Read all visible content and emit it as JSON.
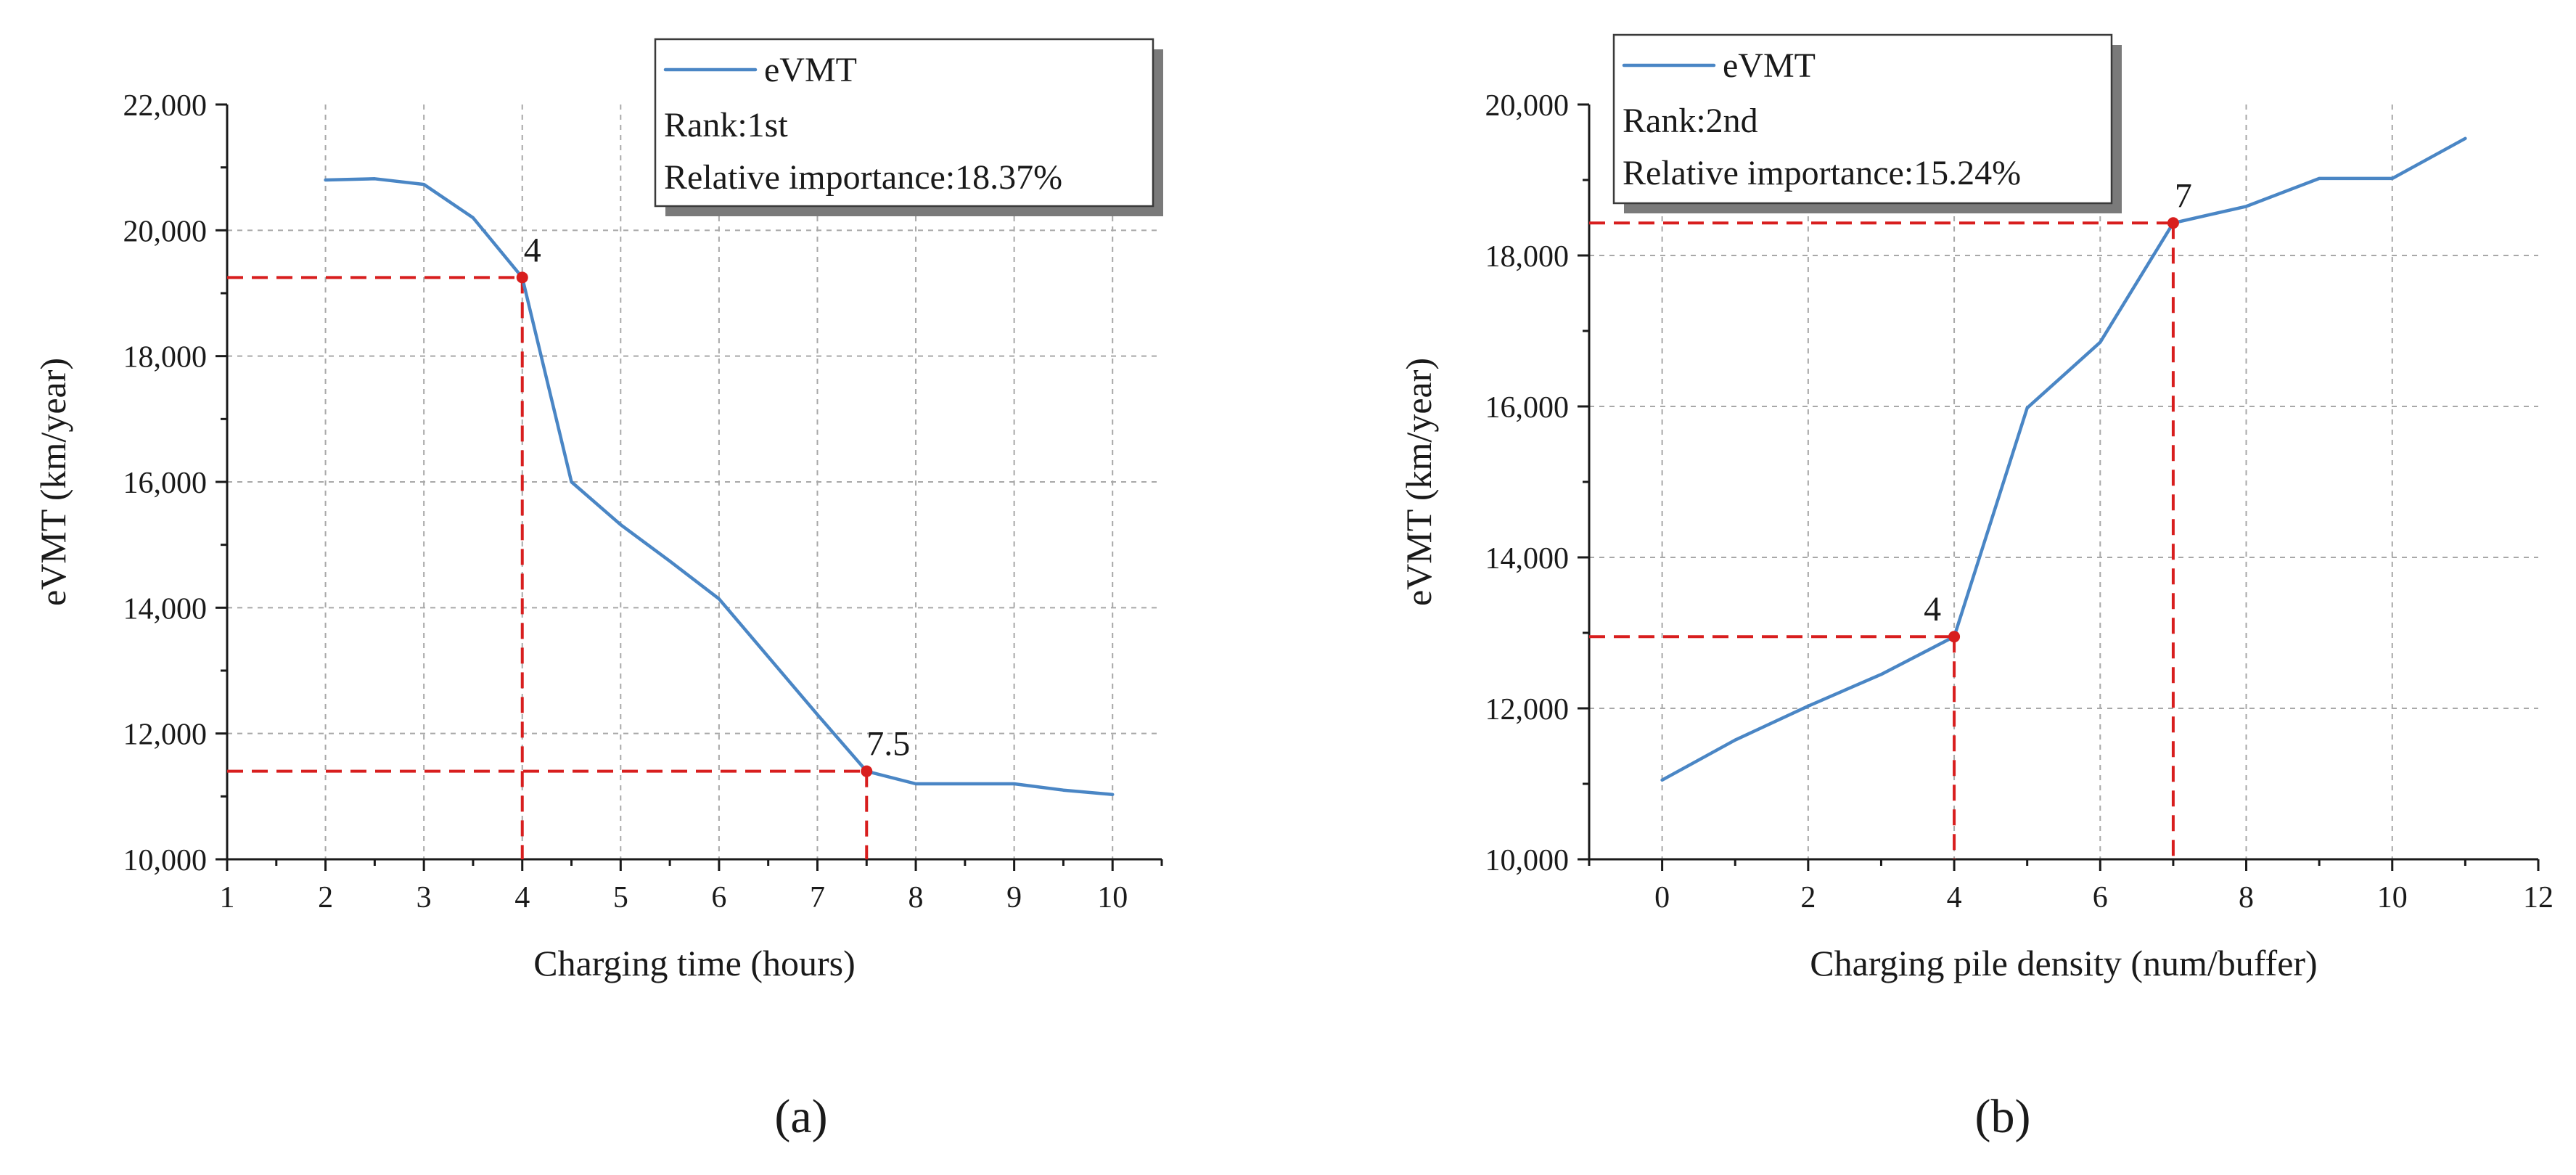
{
  "chart_data": [
    {
      "type": "line",
      "panel_label": "(a)",
      "xlabel": "Charging time (hours)",
      "ylabel": "eVMT (km/year)",
      "xlim": [
        1,
        10.5
      ],
      "ylim": [
        10000,
        22000
      ],
      "xticks": [
        1,
        2,
        3,
        4,
        5,
        6,
        7,
        8,
        9,
        10
      ],
      "yticks": [
        10000,
        12000,
        14000,
        16000,
        18000,
        20000,
        22000
      ],
      "xtick_labels": [
        "1",
        "2",
        "3",
        "4",
        "5",
        "6",
        "7",
        "8",
        "9",
        "10"
      ],
      "ytick_labels": [
        "10,000",
        "12,000",
        "14,000",
        "16,000",
        "18,000",
        "20,000",
        "22,000"
      ],
      "grid": true,
      "legend": {
        "position": "top-right",
        "series_label": "eVMT",
        "rank": "Rank:1st",
        "importance": "Relative importance:18.37%"
      },
      "series": [
        {
          "name": "eVMT",
          "color": "#4a86c5",
          "x": [
            2,
            2.5,
            3,
            3.5,
            4,
            4.5,
            5,
            5.5,
            6,
            6.5,
            7,
            7.5,
            8,
            8.5,
            9,
            9.5,
            10
          ],
          "y": [
            20800,
            20820,
            20730,
            20200,
            19250,
            16000,
            15320,
            14740,
            14140,
            13220,
            12300,
            11400,
            11200,
            11200,
            11200,
            11100,
            11030
          ]
        }
      ],
      "highlights": [
        {
          "x": 4,
          "y": 19250,
          "label": "4"
        },
        {
          "x": 7.5,
          "y": 11400,
          "label": "7.5"
        }
      ]
    },
    {
      "type": "line",
      "panel_label": "(b)",
      "xlabel": "Charging pile density (num/buffer)",
      "ylabel": "eVMT (km/year)",
      "xlim": [
        -1,
        12
      ],
      "ylim": [
        10000,
        20000
      ],
      "xticks": [
        0,
        2,
        4,
        6,
        8,
        10,
        12
      ],
      "yticks": [
        10000,
        12000,
        14000,
        16000,
        18000,
        20000
      ],
      "xtick_labels": [
        "0",
        "2",
        "4",
        "6",
        "8",
        "10",
        "12"
      ],
      "ytick_labels": [
        "10,000",
        "12,000",
        "14,000",
        "16,000",
        "18,000",
        "20,000"
      ],
      "grid": true,
      "legend": {
        "position": "top-left",
        "series_label": "eVMT",
        "rank": "Rank:2nd",
        "importance": "Relative importance:15.24%"
      },
      "series": [
        {
          "name": "eVMT",
          "color": "#4a86c5",
          "x": [
            0,
            1,
            2,
            3,
            4,
            5,
            6,
            7,
            8,
            9,
            10,
            11
          ],
          "y": [
            11050,
            11580,
            12030,
            12450,
            12950,
            15980,
            16850,
            18430,
            18650,
            19020,
            19020,
            19550
          ]
        }
      ],
      "highlights": [
        {
          "x": 4,
          "y": 12950,
          "label": "4"
        },
        {
          "x": 7,
          "y": 18430,
          "label": "7"
        }
      ]
    }
  ]
}
